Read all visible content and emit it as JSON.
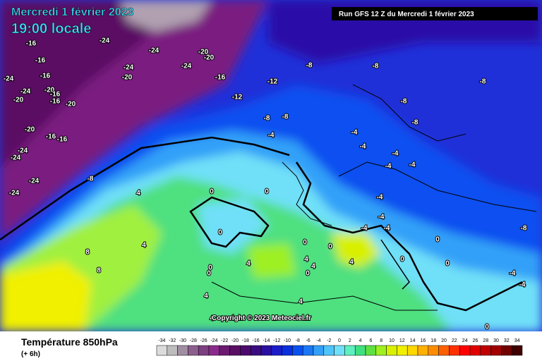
{
  "header": {
    "date": "Mercredi 1 février 2023",
    "time": "19:00 locale",
    "run": "Run GFS 12 Z du Mercredi 1 février 2023"
  },
  "copyright": "Copyright © 2023 Meteociel.fr",
  "footer": {
    "variable": "Température 850hPa",
    "lead": "(+ 6h)"
  },
  "legend": {
    "values": [
      -34,
      -32,
      -30,
      -28,
      -26,
      -24,
      -22,
      -20,
      -18,
      -16,
      -14,
      -12,
      -10,
      -8,
      -6,
      -4,
      -2,
      0,
      2,
      4,
      6,
      8,
      10,
      12,
      14,
      16,
      18,
      20,
      22,
      24,
      26,
      28,
      30,
      32,
      34
    ],
    "colors": [
      "#dcdcdc",
      "#bdbdbd",
      "#a08ea2",
      "#8c5f8e",
      "#7c3f7f",
      "#8b2a8c",
      "#6b1a6f",
      "#5a0f63",
      "#4d0a6e",
      "#3a0c80",
      "#2a0fa0",
      "#1c1cc8",
      "#0a2ee0",
      "#0a50f0",
      "#1a78f5",
      "#33a0f8",
      "#4fc4fa",
      "#70e0f8",
      "#5ef0c0",
      "#40e080",
      "#60e040",
      "#9ef020",
      "#d8f000",
      "#f0f000",
      "#ffd800",
      "#ffb000",
      "#ff8c00",
      "#ff6000",
      "#ff3000",
      "#ff0000",
      "#e00000",
      "#c00000",
      "#a00000",
      "#700000",
      "#400000"
    ]
  },
  "map_labels": [
    -16,
    -16,
    -24,
    -24,
    -20,
    -24,
    -20,
    -24,
    -20,
    -16,
    -12,
    -16,
    -24,
    -24,
    -20,
    -20,
    -16,
    -16,
    -20,
    -12,
    -8,
    -8,
    -8,
    -8,
    -8,
    -8,
    -8,
    -20,
    -16,
    -16,
    -24,
    -24,
    -24,
    -24,
    -8,
    -4,
    -4,
    -4,
    -4,
    -4,
    -4,
    -4,
    -4,
    -4,
    -4,
    0,
    0,
    4,
    0,
    4,
    8,
    8,
    0,
    0,
    4,
    0,
    0,
    4,
    4,
    0,
    4,
    0,
    0,
    -4,
    -4,
    -8,
    0,
    4,
    4,
    4,
    0
  ]
}
